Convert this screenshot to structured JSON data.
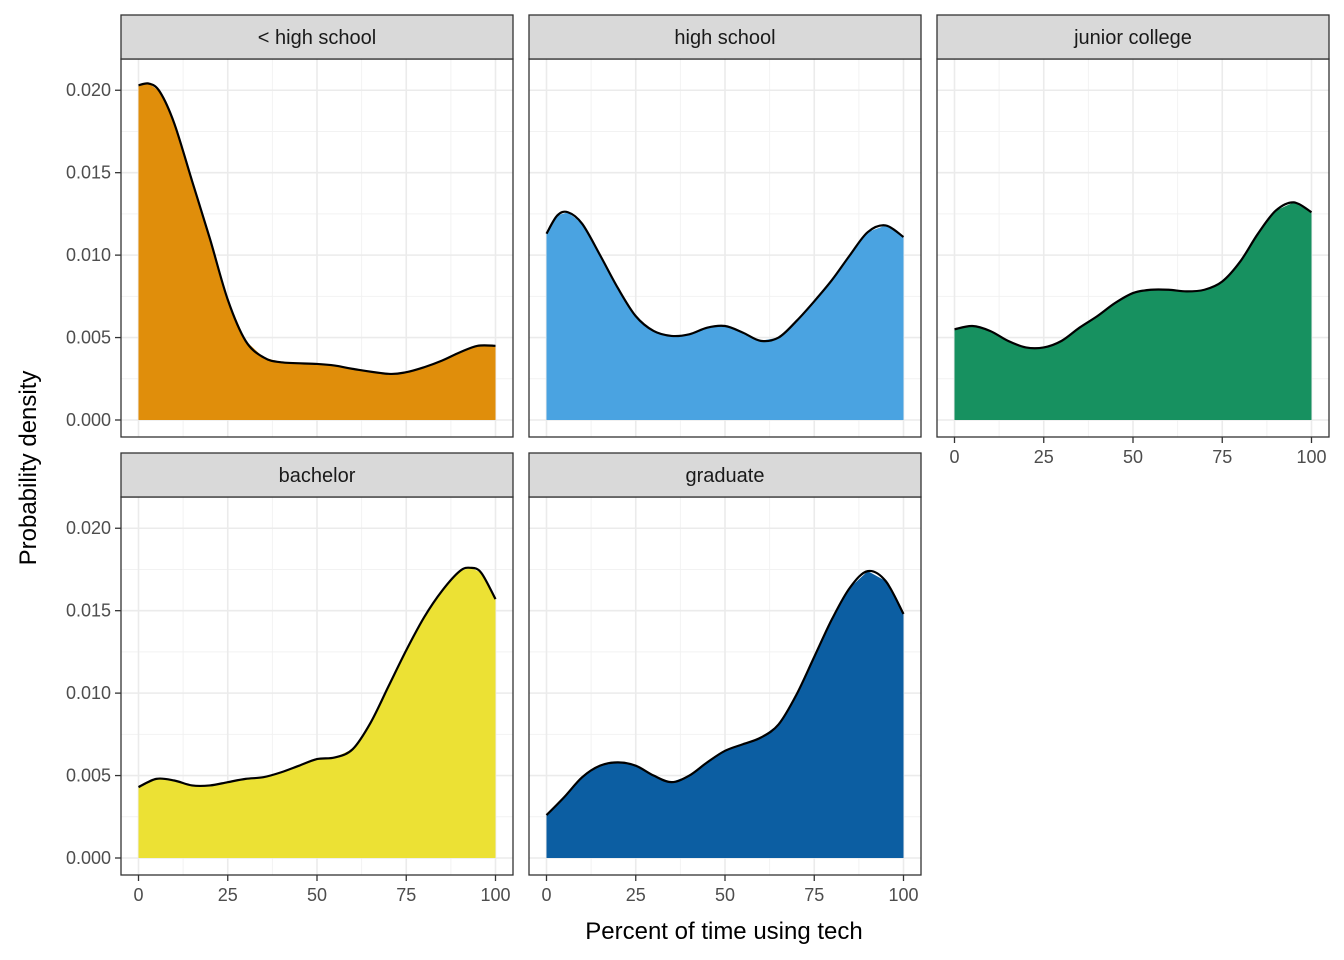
{
  "chart_data": {
    "type": "area",
    "xlabel": "Percent of time using tech",
    "ylabel": "Probability density",
    "xlim": [
      0,
      100
    ],
    "ylim": [
      0,
      0.0205
    ],
    "x_ticks": [
      "0",
      "25",
      "50",
      "75",
      "100"
    ],
    "y_ticks": [
      "0.000",
      "0.005",
      "0.010",
      "0.015",
      "0.020"
    ],
    "grid": true,
    "facets": [
      {
        "label": "< high school",
        "fill": "#E08E0B",
        "x": [
          0,
          3,
          6,
          10,
          15,
          20,
          25,
          30,
          35,
          40,
          50,
          55,
          60,
          70,
          75,
          80,
          85,
          90,
          95,
          100
        ],
        "y": [
          0.0203,
          0.0204,
          0.0199,
          0.018,
          0.0145,
          0.011,
          0.0073,
          0.0048,
          0.0038,
          0.0035,
          0.0034,
          0.0033,
          0.0031,
          0.0028,
          0.0029,
          0.0032,
          0.0036,
          0.0041,
          0.0045,
          0.0045
        ]
      },
      {
        "label": "high school",
        "fill": "#4AA3E1",
        "x": [
          0,
          3,
          6,
          10,
          15,
          20,
          25,
          30,
          35,
          40,
          45,
          50,
          55,
          60,
          65,
          70,
          75,
          80,
          85,
          90,
          95,
          100
        ],
        "y": [
          0.0113,
          0.0124,
          0.0126,
          0.0119,
          0.01,
          0.008,
          0.0063,
          0.0054,
          0.0051,
          0.0052,
          0.0056,
          0.0057,
          0.0053,
          0.0048,
          0.005,
          0.006,
          0.0072,
          0.0085,
          0.01,
          0.0114,
          0.0118,
          0.0111
        ]
      },
      {
        "label": "junior college",
        "fill": "#179160",
        "x": [
          0,
          5,
          10,
          15,
          20,
          25,
          30,
          35,
          40,
          45,
          50,
          55,
          60,
          65,
          70,
          75,
          80,
          85,
          90,
          95,
          100
        ],
        "y": [
          0.0055,
          0.0057,
          0.0054,
          0.0048,
          0.0044,
          0.0044,
          0.0048,
          0.0056,
          0.0063,
          0.0071,
          0.0077,
          0.0079,
          0.0079,
          0.0078,
          0.0079,
          0.0084,
          0.0096,
          0.0113,
          0.0127,
          0.0132,
          0.0126
        ]
      },
      {
        "label": "bachelor",
        "fill": "#ECE134",
        "x": [
          0,
          5,
          10,
          15,
          20,
          25,
          30,
          35,
          40,
          45,
          50,
          55,
          60,
          65,
          70,
          75,
          80,
          85,
          90,
          93,
          96,
          100
        ],
        "y": [
          0.0043,
          0.0048,
          0.0047,
          0.0044,
          0.0044,
          0.0046,
          0.0048,
          0.0049,
          0.0052,
          0.0056,
          0.006,
          0.0061,
          0.0066,
          0.0082,
          0.0104,
          0.0126,
          0.0146,
          0.0162,
          0.0174,
          0.0176,
          0.0173,
          0.0157
        ]
      },
      {
        "label": "graduate",
        "fill": "#0C5EA2",
        "x": [
          0,
          5,
          10,
          15,
          20,
          25,
          30,
          35,
          40,
          45,
          50,
          55,
          60,
          65,
          70,
          75,
          80,
          85,
          90,
          95,
          100
        ],
        "y": [
          0.0026,
          0.0037,
          0.0049,
          0.0056,
          0.0058,
          0.0056,
          0.005,
          0.0046,
          0.005,
          0.0058,
          0.0065,
          0.0069,
          0.0073,
          0.0081,
          0.0099,
          0.0122,
          0.0145,
          0.0164,
          0.0174,
          0.0168,
          0.0148
        ]
      }
    ]
  }
}
